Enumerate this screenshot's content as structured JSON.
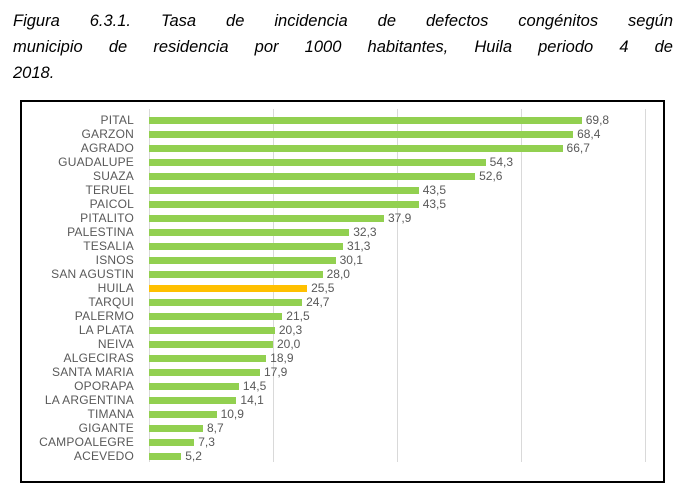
{
  "title": {
    "lines": [
      "Figura 6.3.1. Tasa de incidencia de defectos congénitos según",
      "municipio de residencia por 1000 habitantes, Huila periodo 4 de",
      "2018."
    ]
  },
  "chart_data": {
    "type": "bar",
    "orientation": "horizontal",
    "title": "Figura 6.3.1. Tasa de incidencia de defectos congénitos según municipio de residencia por 1000 habitantes, Huila periodo 4 de 2018.",
    "categories": [
      "PITAL",
      "GARZON",
      "AGRADO",
      "GUADALUPE",
      "SUAZA",
      "TERUEL",
      "PAICOL",
      "PITALITO",
      "PALESTINA",
      "TESALIA",
      "ISNOS",
      "SAN AGUSTIN",
      "HUILA",
      "TARQUI",
      "PALERMO",
      "LA PLATA",
      "NEIVA",
      "ALGECIRAS",
      "SANTA MARIA",
      "OPORAPA",
      "LA ARGENTINA",
      "TIMANA",
      "GIGANTE",
      "CAMPOALEGRE",
      "ACEVEDO"
    ],
    "values": [
      69.8,
      68.4,
      66.7,
      54.3,
      52.6,
      43.5,
      43.5,
      37.9,
      32.3,
      31.3,
      30.1,
      28.0,
      25.5,
      24.7,
      21.5,
      20.3,
      20.0,
      18.9,
      17.9,
      14.5,
      14.1,
      10.9,
      8.7,
      7.3,
      5.2
    ],
    "value_label_decimals": 1,
    "decimal_separator": ",",
    "xlabel": "",
    "ylabel": "",
    "xlim": [
      0,
      80
    ],
    "x_gridlines": [
      0,
      20,
      40,
      60,
      80
    ],
    "grid": true,
    "x_tick_labels_visible": false,
    "legend": "none",
    "bar_color": "#92D050",
    "highlight_category": "HUILA",
    "highlight_color": "#FFC000",
    "text_color": "#595959",
    "gridline_color": "#D9D9D9",
    "frame_color": "#000000"
  }
}
